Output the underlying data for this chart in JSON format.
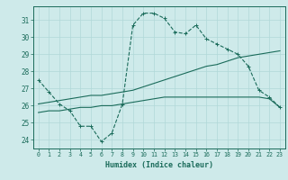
{
  "title": "",
  "xlabel": "Humidex (Indice chaleur)",
  "ylabel": "",
  "bg_color": "#ceeaea",
  "line_color": "#1a6b5a",
  "grid_color": "#b0d8d8",
  "xlim": [
    -0.5,
    23.5
  ],
  "ylim": [
    23.5,
    31.8
  ],
  "yticks": [
    24,
    25,
    26,
    27,
    28,
    29,
    30,
    31
  ],
  "xticks": [
    0,
    1,
    2,
    3,
    4,
    5,
    6,
    7,
    8,
    9,
    10,
    11,
    12,
    13,
    14,
    15,
    16,
    17,
    18,
    19,
    20,
    21,
    22,
    23
  ],
  "curve1_x": [
    0,
    1,
    2,
    3,
    4,
    5,
    6,
    7,
    8,
    9,
    10,
    11,
    12,
    13,
    14,
    15,
    16,
    17,
    18,
    19,
    20,
    21,
    22,
    23
  ],
  "curve1_y": [
    27.5,
    26.8,
    26.1,
    25.7,
    24.8,
    24.8,
    23.9,
    24.4,
    26.1,
    30.7,
    31.4,
    31.4,
    31.1,
    30.3,
    30.2,
    30.7,
    29.9,
    29.6,
    29.3,
    29.0,
    28.3,
    26.9,
    26.5,
    25.9
  ],
  "curve2_x": [
    0,
    1,
    2,
    3,
    4,
    5,
    6,
    7,
    8,
    9,
    10,
    11,
    12,
    13,
    14,
    15,
    16,
    17,
    18,
    19,
    20,
    21,
    22,
    23
  ],
  "curve2_y": [
    26.1,
    26.2,
    26.3,
    26.4,
    26.5,
    26.6,
    26.6,
    26.7,
    26.8,
    26.9,
    27.1,
    27.3,
    27.5,
    27.7,
    27.9,
    28.1,
    28.3,
    28.4,
    28.6,
    28.8,
    28.9,
    29.0,
    29.1,
    29.2
  ],
  "curve3_x": [
    0,
    1,
    2,
    3,
    4,
    5,
    6,
    7,
    8,
    9,
    10,
    11,
    12,
    13,
    14,
    15,
    16,
    17,
    18,
    19,
    20,
    21,
    22,
    23
  ],
  "curve3_y": [
    25.6,
    25.7,
    25.7,
    25.8,
    25.9,
    25.9,
    26.0,
    26.0,
    26.1,
    26.2,
    26.3,
    26.4,
    26.5,
    26.5,
    26.5,
    26.5,
    26.5,
    26.5,
    26.5,
    26.5,
    26.5,
    26.5,
    26.4,
    25.9
  ]
}
